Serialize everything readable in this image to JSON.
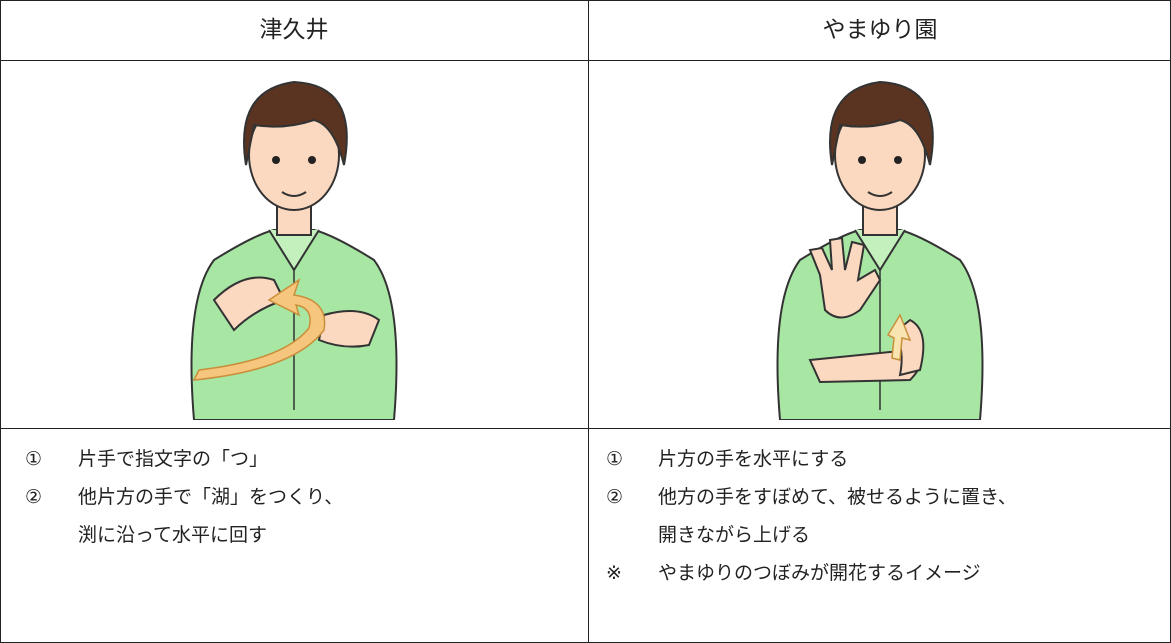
{
  "columns": [
    {
      "title": "津久井",
      "steps": [
        {
          "marker": "①",
          "lines": [
            "片手で指文字の「つ」"
          ]
        },
        {
          "marker": "②",
          "lines": [
            "他片方の手で「湖」をつくり、",
            "渕に沿って水平に回す"
          ]
        }
      ]
    },
    {
      "title": "やまゆり園",
      "steps": [
        {
          "marker": "①",
          "lines": [
            "片方の手を水平にする"
          ]
        },
        {
          "marker": "②",
          "lines": [
            "他方の手をすぼめて、被せるように置き、",
            "開きながら上げる"
          ]
        },
        {
          "marker": "※",
          "lines": [
            "やまゆりのつぼみが開花するイメージ"
          ]
        }
      ]
    }
  ]
}
